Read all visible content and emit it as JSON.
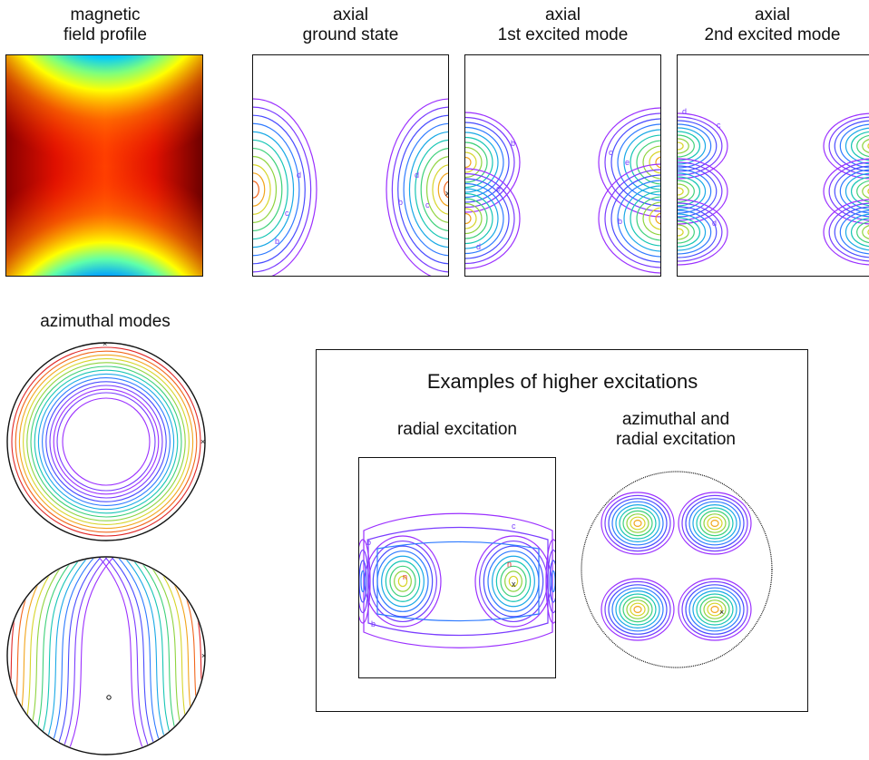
{
  "titles": {
    "field": "magnetic\nfield profile",
    "ground": "axial\nground state",
    "first": "axial\n1st excited mode",
    "second": "axial\n2nd excited mode",
    "azimuthal": "azimuthal modes",
    "higher": "Examples of higher excitations",
    "radial": "radial excitation",
    "azrad": "azimuthal and\nradial excitation"
  },
  "contour_letters": [
    "b",
    "c",
    "d",
    "e",
    "f",
    "g",
    "h",
    "n",
    "x"
  ],
  "contour_colors": [
    "#9b30ff",
    "#7a3cff",
    "#4a4dff",
    "#2f7bff",
    "#1aa9e6",
    "#18c6b5",
    "#3fd17a",
    "#8fd43f",
    "#d7d52a",
    "#f2a51c",
    "#f2661c",
    "#e02828"
  ]
}
